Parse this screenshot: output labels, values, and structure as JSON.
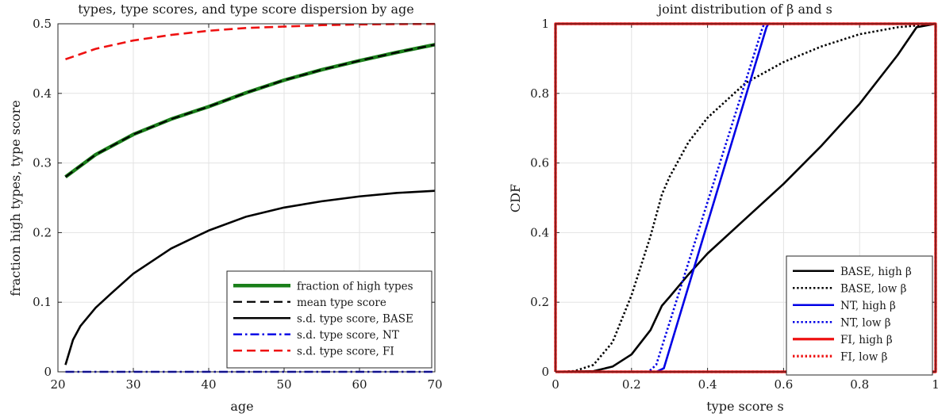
{
  "chart_data": [
    {
      "type": "line",
      "title": "types, type scores, and type score dispersion by age",
      "xlabel": "age",
      "ylabel": "fraction high types, type score",
      "xlim": [
        20,
        70
      ],
      "ylim": [
        0,
        0.5
      ],
      "xticks": [
        "20",
        "30",
        "40",
        "50",
        "60",
        "70"
      ],
      "yticks": [
        "0",
        "0.1",
        "0.2",
        "0.3",
        "0.4",
        "0.5"
      ],
      "grid": true,
      "legend_position": "bottom-right",
      "series": [
        {
          "name": "fraction of high types",
          "color": "#1a7f1a",
          "dash": "solid",
          "width": 4.5,
          "x": [
            21,
            25,
            30,
            35,
            40,
            45,
            50,
            55,
            60,
            65,
            70
          ],
          "y": [
            0.28,
            0.312,
            0.341,
            0.363,
            0.381,
            0.401,
            0.419,
            0.434,
            0.447,
            0.459,
            0.47
          ]
        },
        {
          "name": "mean type score",
          "color": "#000000",
          "dash": "dashed",
          "width": 2.2,
          "x": [
            21,
            25,
            30,
            35,
            40,
            45,
            50,
            55,
            60,
            65,
            70
          ],
          "y": [
            0.28,
            0.312,
            0.341,
            0.363,
            0.381,
            0.401,
            0.419,
            0.434,
            0.447,
            0.459,
            0.47
          ]
        },
        {
          "name": "s.d. type score, BASE",
          "color": "#000000",
          "dash": "solid",
          "width": 2.6,
          "x": [
            21,
            22,
            23,
            25,
            27,
            30,
            35,
            40,
            45,
            50,
            55,
            60,
            65,
            70
          ],
          "y": [
            0.01,
            0.046,
            0.066,
            0.092,
            0.112,
            0.141,
            0.177,
            0.203,
            0.223,
            0.236,
            0.245,
            0.252,
            0.257,
            0.26
          ]
        },
        {
          "name": "s.d. type score, NT",
          "color": "#0000e6",
          "dash": "dashdot",
          "width": 2.6,
          "x": [
            21,
            70
          ],
          "y": [
            0,
            0
          ]
        },
        {
          "name": "s.d. type score, FI",
          "color": "#ee1111",
          "dash": "dashed",
          "width": 2.6,
          "x": [
            21,
            25,
            30,
            35,
            40,
            45,
            50,
            55,
            60,
            65,
            70
          ],
          "y": [
            0.449,
            0.464,
            0.476,
            0.484,
            0.49,
            0.494,
            0.496,
            0.498,
            0.499,
            0.4995,
            0.4998
          ]
        }
      ]
    },
    {
      "type": "line",
      "title": "joint distribution of β and s",
      "xlabel": "type score s",
      "ylabel": "CDF",
      "xlim": [
        0,
        1
      ],
      "ylim": [
        0,
        1
      ],
      "xticks": [
        "0",
        "0.2",
        "0.4",
        "0.6",
        "0.8",
        "1"
      ],
      "yticks": [
        "0",
        "0.2",
        "0.4",
        "0.6",
        "0.8",
        "1"
      ],
      "grid": true,
      "legend_position": "bottom-right",
      "series": [
        {
          "name": "BASE, high β",
          "color": "#000000",
          "dash": "solid",
          "width": 2.6,
          "x": [
            0,
            0.1,
            0.15,
            0.2,
            0.25,
            0.28,
            0.3,
            0.35,
            0.4,
            0.5,
            0.6,
            0.7,
            0.8,
            0.9,
            0.95,
            1.0
          ],
          "y": [
            0,
            0.002,
            0.015,
            0.05,
            0.12,
            0.19,
            0.215,
            0.28,
            0.34,
            0.44,
            0.54,
            0.65,
            0.77,
            0.91,
            0.99,
            1.0
          ]
        },
        {
          "name": "BASE, low β",
          "color": "#000000",
          "dash": "dotted",
          "width": 2.6,
          "x": [
            0,
            0.05,
            0.1,
            0.15,
            0.2,
            0.25,
            0.28,
            0.3,
            0.35,
            0.4,
            0.5,
            0.6,
            0.7,
            0.8,
            0.9,
            1.0
          ],
          "y": [
            0,
            0.002,
            0.02,
            0.085,
            0.22,
            0.39,
            0.51,
            0.56,
            0.66,
            0.73,
            0.83,
            0.89,
            0.935,
            0.97,
            0.99,
            1.0
          ]
        },
        {
          "name": "NT, high β",
          "color": "#0000e6",
          "dash": "solid",
          "width": 2.6,
          "x": [
            0,
            0.265,
            0.285,
            0.555,
            0.56,
            1.0
          ],
          "y": [
            0,
            0,
            0.01,
            0.99,
            1.0,
            1.0
          ]
        },
        {
          "name": "NT, low β",
          "color": "#0000e6",
          "dash": "dotted",
          "width": 2.6,
          "x": [
            0,
            0.245,
            0.265,
            0.545,
            0.55,
            1.0
          ],
          "y": [
            0,
            0,
            0.02,
            0.99,
            1.0,
            1.0
          ]
        },
        {
          "name": "FI, high β",
          "color": "#ee1111",
          "dash": "solid",
          "width": 3.2,
          "x": [
            0,
            0,
            1,
            1,
            0
          ],
          "y": [
            0,
            1,
            1,
            0,
            0
          ]
        },
        {
          "name": "FI, low β",
          "color": "#ee1111",
          "dash": "dotted",
          "width": 3.2,
          "x": [
            0,
            0,
            1,
            1,
            0
          ],
          "y": [
            0,
            1,
            1,
            0,
            0
          ]
        }
      ]
    }
  ]
}
